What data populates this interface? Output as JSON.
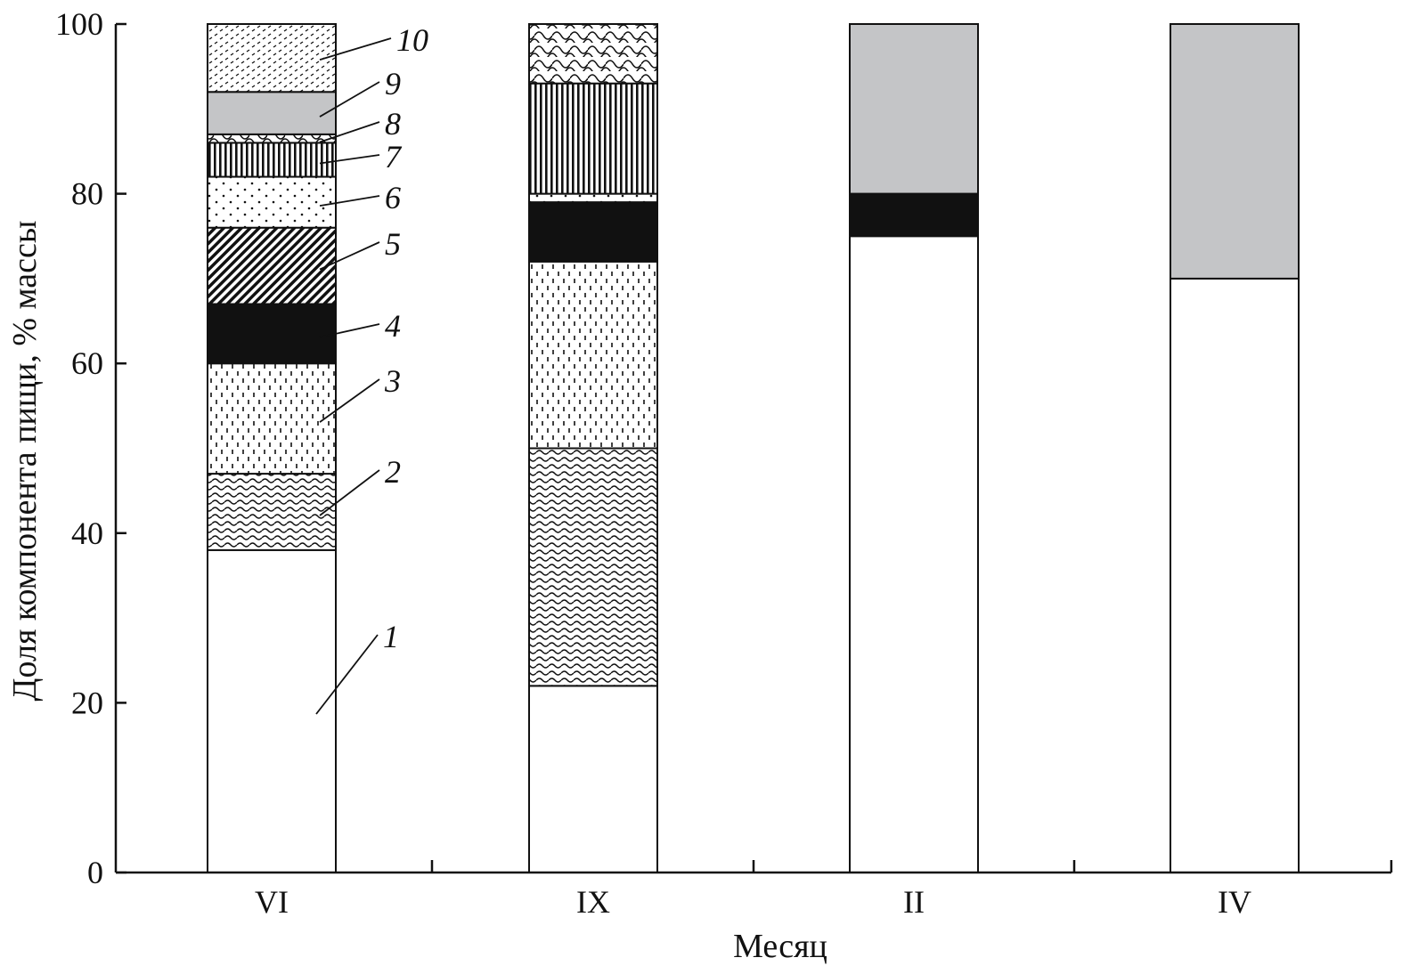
{
  "chart_data": {
    "type": "bar",
    "stacked": true,
    "xlabel": "Месяц",
    "ylabel": "Доля компонента пищи, % массы",
    "ylim": [
      0,
      100
    ],
    "yticks": [
      0,
      20,
      40,
      60,
      80,
      100
    ],
    "categories": [
      "VI",
      "IX",
      "II",
      "IV"
    ],
    "grid": false,
    "legend": "none",
    "series": [
      {
        "name": "1",
        "pattern": "white",
        "values": [
          38,
          22,
          75,
          70
        ]
      },
      {
        "name": "2",
        "pattern": "wavy",
        "values": [
          9,
          28,
          0,
          0
        ]
      },
      {
        "name": "3",
        "pattern": "dashes",
        "values": [
          13,
          22,
          0,
          0
        ]
      },
      {
        "name": "4",
        "pattern": "black",
        "values": [
          7,
          7,
          5,
          0
        ]
      },
      {
        "name": "5",
        "pattern": "diagonal",
        "values": [
          9,
          0,
          0,
          0
        ]
      },
      {
        "name": "6",
        "pattern": "dots",
        "values": [
          6,
          1,
          0,
          0
        ]
      },
      {
        "name": "7",
        "pattern": "vertical",
        "values": [
          4,
          13,
          0,
          0
        ]
      },
      {
        "name": "8",
        "pattern": "scales",
        "values": [
          1,
          7,
          0,
          0
        ]
      },
      {
        "name": "9",
        "pattern": "gray",
        "values": [
          5,
          0,
          20,
          30
        ]
      },
      {
        "name": "10",
        "pattern": "ticks",
        "values": [
          8,
          0,
          0,
          0
        ]
      }
    ],
    "annotations": [
      {
        "label": "1",
        "series": 0,
        "category": 0
      },
      {
        "label": "2",
        "series": 1,
        "category": 0
      },
      {
        "label": "3",
        "series": 2,
        "category": 0
      },
      {
        "label": "4",
        "series": 3,
        "category": 0
      },
      {
        "label": "5",
        "series": 4,
        "category": 0
      },
      {
        "label": "6",
        "series": 5,
        "category": 0
      },
      {
        "label": "7",
        "series": 6,
        "category": 0
      },
      {
        "label": "8",
        "series": 7,
        "category": 0
      },
      {
        "label": "9",
        "series": 8,
        "category": 0
      },
      {
        "label": "10",
        "series": 9,
        "category": 0
      }
    ],
    "colors": {
      "axis": "#111111",
      "gray": "#c4c5c7",
      "black": "#111111",
      "white": "#ffffff"
    }
  }
}
